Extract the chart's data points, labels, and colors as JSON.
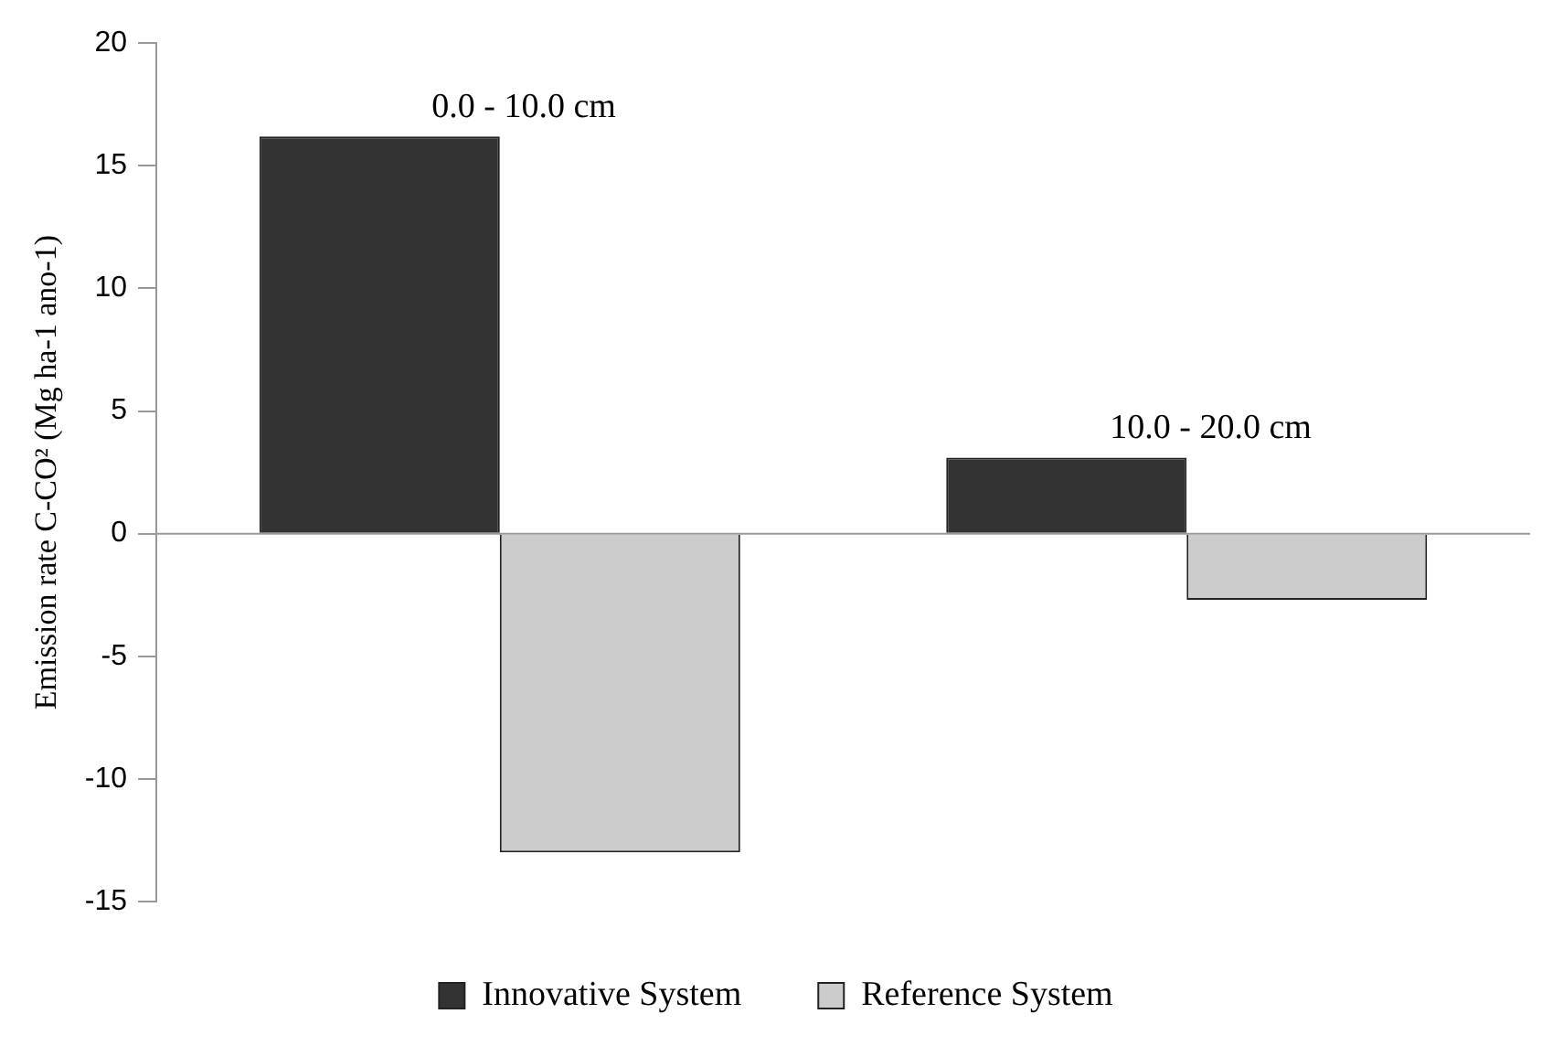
{
  "chart_data": {
    "type": "bar",
    "ylabel": "Emission rate C-CO² (Mg ha-1 ano-1)",
    "categories": [
      "0.0 - 10.0 cm",
      "10.0 - 20.0 cm"
    ],
    "series": [
      {
        "name": "Innovative System",
        "color": "#333333",
        "values": [
          16.2,
          3.1
        ]
      },
      {
        "name": "Reference System",
        "color": "#cccccc",
        "values": [
          -13.0,
          -2.7
        ]
      }
    ],
    "ylim": [
      -15,
      20
    ],
    "yticks": [
      -15,
      -10,
      -5,
      0,
      5,
      10,
      15,
      20
    ],
    "grid": false,
    "ref_lines": [
      {
        "axis": "y",
        "value": 0,
        "color": "#999999"
      }
    ],
    "legend": "bottom"
  }
}
